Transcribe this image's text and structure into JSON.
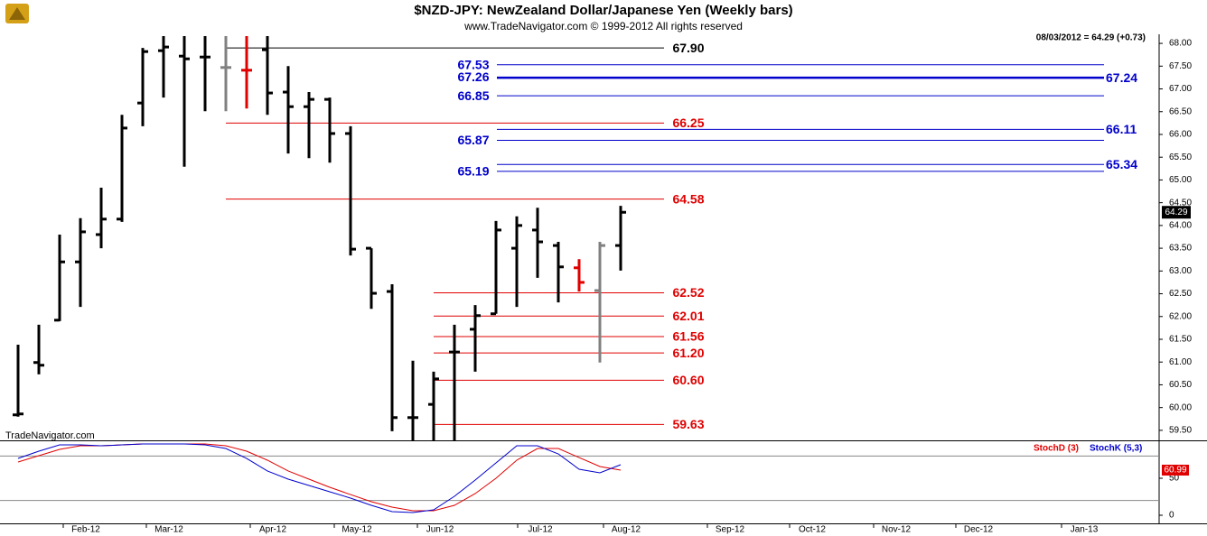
{
  "chart_data": [
    {
      "type": "ohlc",
      "title": "$NZD-JPY:  NewZealand Dollar/Japanese Yen  (Weekly bars)",
      "subtitle": "www.TradeNavigator.com © 1999-2012 All rights reserved",
      "info": "08/03/2012 = 64.29 (+0.73)",
      "watermark": "TradeNavigator.com",
      "categories": [
        null,
        null,
        null,
        null,
        null,
        null,
        null,
        null,
        null,
        null,
        null,
        null,
        null,
        null,
        null,
        null,
        null,
        null,
        null,
        null,
        null,
        null,
        null,
        null,
        null,
        null,
        null,
        null,
        null,
        null
      ],
      "open": [
        59.84,
        60.99,
        61.92,
        63.2,
        63.8,
        64.14,
        66.69,
        67.84,
        67.72,
        67.7,
        67.47,
        67.41,
        67.86,
        66.93,
        66.61,
        66.77,
        66.02,
        63.5,
        62.55,
        59.78,
        60.07,
        61.22,
        61.72,
        62.06,
        63.5,
        63.9,
        63.56,
        63.07,
        62.57,
        63.56
      ],
      "high": [
        61.38,
        61.82,
        63.8,
        64.16,
        64.83,
        66.43,
        67.9,
        68.16,
        68.16,
        68.16,
        68.16,
        68.16,
        68.16,
        67.5,
        66.93,
        66.81,
        66.18,
        63.5,
        62.71,
        61.03,
        60.79,
        61.82,
        62.25,
        64.1,
        64.2,
        64.39,
        63.64,
        63.26,
        63.64,
        64.43
      ],
      "low": [
        59.8,
        60.73,
        61.9,
        62.21,
        63.5,
        64.08,
        66.18,
        66.81,
        65.29,
        66.51,
        66.51,
        66.57,
        66.43,
        65.58,
        65.48,
        65.38,
        63.34,
        62.17,
        59.48,
        59.28,
        59.28,
        59.28,
        60.79,
        62.06,
        62.21,
        62.85,
        62.31,
        62.55,
        60.99,
        63.01
      ],
      "close": [
        59.86,
        60.93,
        63.2,
        63.86,
        64.14,
        66.14,
        67.82,
        67.92,
        67.66,
        67.7,
        67.47,
        67.41,
        66.91,
        66.61,
        66.77,
        66.02,
        63.48,
        62.51,
        59.78,
        59.78,
        60.63,
        61.22,
        62.02,
        63.9,
        64.0,
        63.64,
        63.09,
        62.75,
        63.56,
        64.29
      ],
      "colors": [
        "#000000",
        "#000000",
        "#000000",
        "#000000",
        "#000000",
        "#000000",
        "#000000",
        "#000000",
        "#000000",
        "#000000",
        "#808080",
        "#e00000",
        "#000000",
        "#000000",
        "#000000",
        "#000000",
        "#000000",
        "#000000",
        "#000000",
        "#000000",
        "#000000",
        "#000000",
        "#000000",
        "#000000",
        "#000000",
        "#000000",
        "#000000",
        "#e00000",
        "#808080",
        "#000000"
      ],
      "ylim": [
        59.28,
        68.16
      ],
      "yticks": [
        {
          "value": 59.5,
          "label": "59.50"
        },
        {
          "value": 60,
          "label": "60.00"
        },
        {
          "value": 60.5,
          "label": "60.50"
        },
        {
          "value": 61,
          "label": "61.00"
        },
        {
          "value": 61.5,
          "label": "61.50"
        },
        {
          "value": 62,
          "label": "62.00"
        },
        {
          "value": 62.5,
          "label": "62.50"
        },
        {
          "value": 63,
          "label": "63.00"
        },
        {
          "value": 63.5,
          "label": "63.50"
        },
        {
          "value": 64,
          "label": "64.00"
        },
        {
          "value": 64.5,
          "label": "64.50"
        },
        {
          "value": 65,
          "label": "65.00"
        },
        {
          "value": 65.5,
          "label": "65.50"
        },
        {
          "value": 66,
          "label": "66.00"
        },
        {
          "value": 66.5,
          "label": "66.50"
        },
        {
          "value": 67,
          "label": "67.00"
        },
        {
          "value": 67.5,
          "label": "67.50"
        },
        {
          "value": 68,
          "label": "68.00"
        }
      ],
      "xtick_labels": [
        "Feb-12",
        "Mar-12",
        "Apr-12",
        "May-12",
        "Jun-12",
        "Jul-12",
        "Aug-12",
        "Sep-12",
        "Oct-12",
        "Nov-12",
        "Dec-12",
        "Jan-13"
      ],
      "levels": [
        {
          "value": 67.9,
          "label": "67.90",
          "color": "#000000"
        },
        {
          "value": 66.25,
          "label": "66.25",
          "color": "#e00000"
        },
        {
          "value": 64.58,
          "label": "64.58",
          "color": "#e00000"
        },
        {
          "value": 62.52,
          "label": "62.52",
          "color": "#e00000"
        },
        {
          "value": 62.01,
          "label": "62.01",
          "color": "#e00000"
        },
        {
          "value": 61.56,
          "label": "61.56",
          "color": "#e00000"
        },
        {
          "value": 61.2,
          "label": "61.20",
          "color": "#e00000"
        },
        {
          "value": 60.6,
          "label": "60.60",
          "color": "#e00000"
        },
        {
          "value": 59.63,
          "label": "59.63",
          "color": "#e00000"
        },
        {
          "value": 67.53,
          "label": "67.53",
          "color": "#0000cc"
        },
        {
          "value": 67.26,
          "label": "67.26",
          "color": "#0000cc"
        },
        {
          "value": 66.85,
          "label": "66.85",
          "color": "#0000cc"
        },
        {
          "value": 65.87,
          "label": "65.87",
          "color": "#0000cc"
        },
        {
          "value": 65.19,
          "label": "65.19",
          "color": "#0000cc"
        },
        {
          "value": 67.24,
          "label": "67.24",
          "color": "#0000cc"
        },
        {
          "value": 66.11,
          "label": "66.11",
          "color": "#0000cc"
        },
        {
          "value": 65.34,
          "label": "65.34",
          "color": "#0000cc"
        }
      ]
    },
    {
      "type": "line",
      "series": [
        {
          "name": "StochD (3)",
          "color": "#e00000",
          "values": [
            72.0,
            80.5,
            89.0,
            93.9,
            93.9,
            95.1,
            96.3,
            96.3,
            96.3,
            96.3,
            93.9,
            86.6,
            74.4,
            59.8,
            48.8,
            37.8,
            28.0,
            18.3,
            11.0,
            6.1,
            6.1,
            13.4,
            29.3,
            50.0,
            74.4,
            90.2,
            90.2,
            78.0,
            65.9,
            60.99
          ]
        },
        {
          "name": "StochK (5,3)",
          "color": "#0000cc",
          "values": [
            76.8,
            86.6,
            95.1,
            95.1,
            93.9,
            95.1,
            96.3,
            96.3,
            96.3,
            95.1,
            90.2,
            76.8,
            59.8,
            48.8,
            40.2,
            31.7,
            23.2,
            13.4,
            4.9,
            3.7,
            7.3,
            25.6,
            47.6,
            70.7,
            93.9,
            93.9,
            82.9,
            62.2,
            57.3,
            68.3
          ]
        }
      ],
      "ylim": [
        0,
        100
      ],
      "yticks": [
        0,
        50
      ],
      "guide_lines": [
        20,
        80
      ]
    }
  ]
}
